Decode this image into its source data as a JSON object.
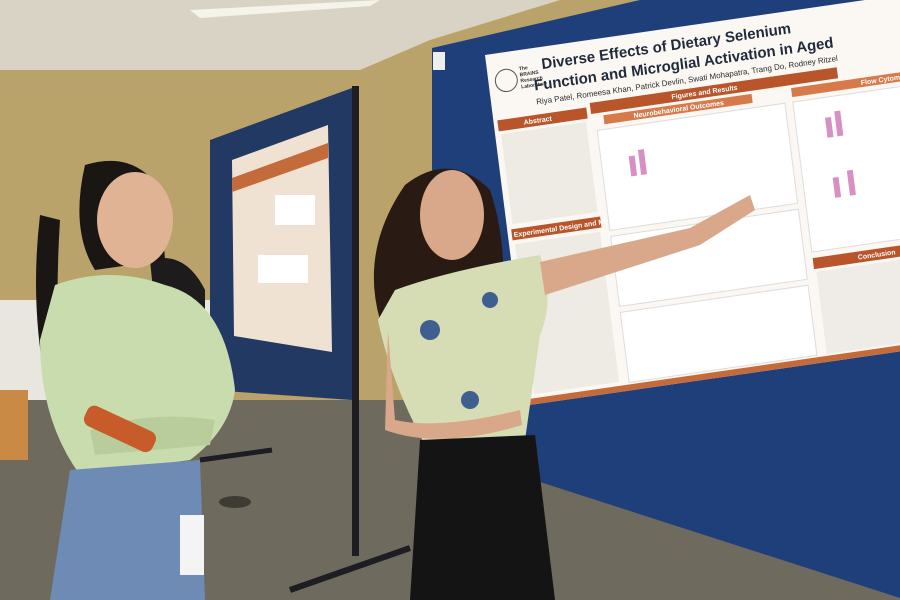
{
  "poster": {
    "title_line1": "Diverse Effects of Dietary Selenium",
    "title_line2": "Function and Microglial Activation in Aged",
    "authors": "Riya Patel, Romeesa Khan, Patrick Devlin, Swati Mohapatra, Trang Do, Rodney Ritzel",
    "logo": [
      "The",
      "BRAINS",
      "Research",
      "Laboratory"
    ],
    "sections": {
      "abstract": "Abstract",
      "figures": "Figures and Results",
      "flow": "Flow Cytometry",
      "neuro": "Neurobehavioral Outcomes",
      "methods": "Experimental Design and Methods",
      "conclusion": "Conclusion"
    }
  }
}
